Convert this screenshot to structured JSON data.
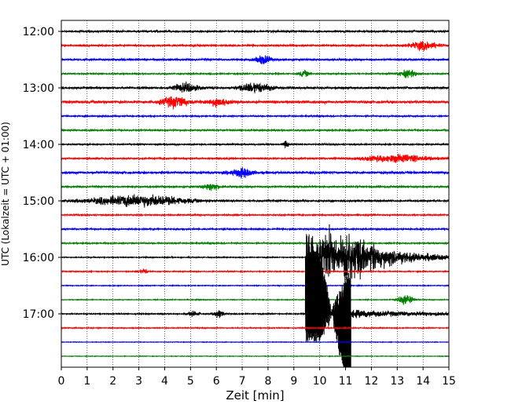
{
  "chart_data": {
    "type": "line",
    "title": "",
    "xlabel": "Zeit  [min]",
    "ylabel": "UTC (Lokalzeit = UTC + 01:00)",
    "xlim": [
      0,
      15
    ],
    "x_ticks": [
      "0",
      "1",
      "2",
      "3",
      "4",
      "5",
      "6",
      "7",
      "8",
      "9",
      "10",
      "11",
      "12",
      "13",
      "14",
      "15"
    ],
    "y_ticks": [
      {
        "label": "12:00",
        "row": 0
      },
      {
        "label": "13:00",
        "row": 4
      },
      {
        "label": "14:00",
        "row": 8
      },
      {
        "label": "15:00",
        "row": 12
      },
      {
        "label": "16:00",
        "row": 16
      },
      {
        "label": "17:00",
        "row": 20
      }
    ],
    "grid": "vertical dotted",
    "trace_colors": [
      "#000000",
      "#ff0000",
      "#0000ff",
      "#008000"
    ],
    "trace_interval_minutes": 15,
    "trace_starts": [
      "12:00",
      "12:15",
      "12:30",
      "12:45",
      "13:00",
      "13:15",
      "13:30",
      "13:45",
      "14:00",
      "14:15",
      "14:30",
      "14:45",
      "15:00",
      "15:15",
      "15:30",
      "15:45",
      "16:00",
      "16:15",
      "16:30",
      "16:45",
      "17:00",
      "17:15",
      "17:30",
      "17:45"
    ],
    "noise_amplitude": [
      0.5,
      0.45,
      0.55,
      0.35,
      0.6,
      0.75,
      0.35,
      0.4,
      0.35,
      0.4,
      0.7,
      0.5,
      0.5,
      0.35,
      0.4,
      0.35,
      0.25,
      0.25,
      0.2,
      0.2,
      0.3,
      0.25,
      0.15,
      0.15
    ],
    "events": [
      {
        "row": 1,
        "x": 14.0,
        "amp": 1.0,
        "dur": 0.6
      },
      {
        "row": 2,
        "x": 7.8,
        "amp": 1.1,
        "dur": 0.3
      },
      {
        "row": 3,
        "x": 9.4,
        "amp": 0.8,
        "dur": 0.2
      },
      {
        "row": 3,
        "x": 13.4,
        "amp": 0.9,
        "dur": 0.4
      },
      {
        "row": 4,
        "x": 7.5,
        "amp": 1.2,
        "dur": 0.6
      },
      {
        "row": 4,
        "x": 4.8,
        "amp": 1.0,
        "dur": 0.5
      },
      {
        "row": 5,
        "x": 4.4,
        "amp": 1.3,
        "dur": 0.5
      },
      {
        "row": 5,
        "x": 6.0,
        "amp": 0.9,
        "dur": 0.4
      },
      {
        "row": 8,
        "x": 8.7,
        "amp": 0.8,
        "dur": 0.1
      },
      {
        "row": 9,
        "x": 13.0,
        "amp": 0.9,
        "dur": 1.3
      },
      {
        "row": 10,
        "x": 7.0,
        "amp": 1.1,
        "dur": 0.4
      },
      {
        "row": 11,
        "x": 5.8,
        "amp": 0.9,
        "dur": 0.3
      },
      {
        "row": 12,
        "x": 3.0,
        "amp": 1.4,
        "dur": 1.8
      },
      {
        "row": 17,
        "x": 3.2,
        "amp": 0.7,
        "dur": 0.15
      },
      {
        "row": 19,
        "x": 13.3,
        "amp": 1.4,
        "dur": 0.3
      },
      {
        "row": 20,
        "x": 6.1,
        "amp": 1.0,
        "dur": 0.2
      },
      {
        "row": 20,
        "x": 5.1,
        "amp": 0.6,
        "dur": 0.2
      }
    ],
    "earthquake": {
      "onset_min": 9.45,
      "start_row": 16,
      "end_row": 22,
      "peak_minutes": 1.4,
      "decay_minutes": 4.5
    }
  }
}
